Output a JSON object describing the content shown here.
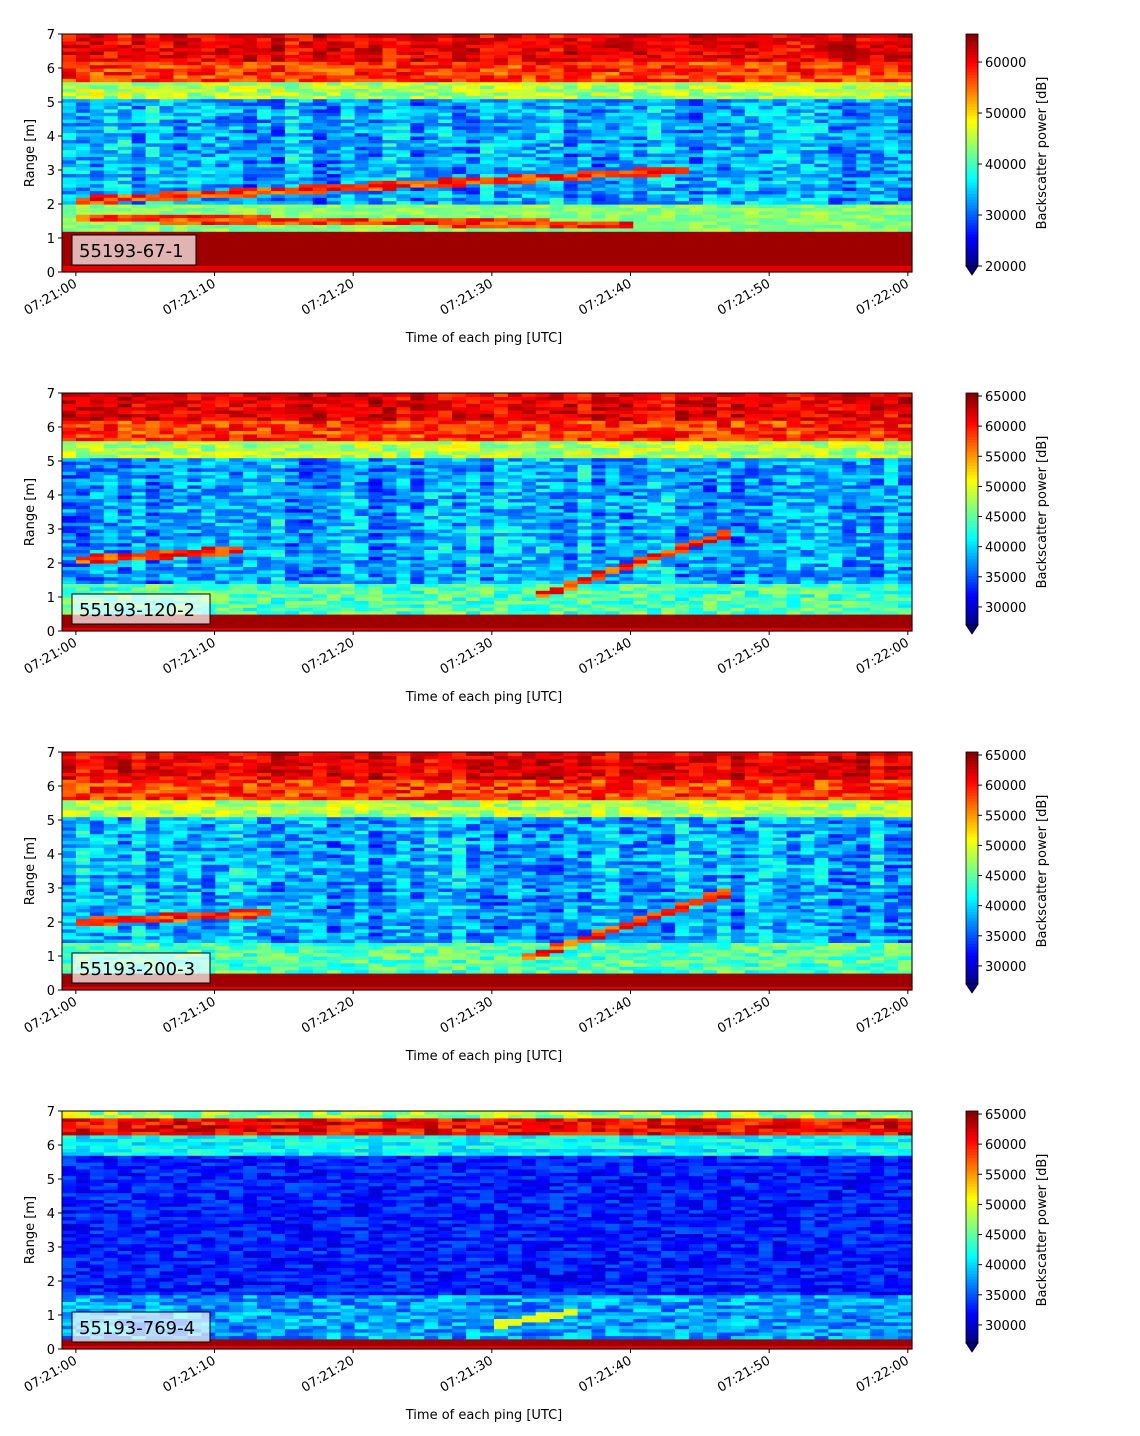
{
  "chart_data": [
    {
      "type": "heatmap",
      "label": "55193-67-1",
      "xlabel": "Time of each ping [UTC]",
      "ylabel": "Range [m]",
      "xticks": [
        "07:21:00",
        "07:21:10",
        "07:21:20",
        "07:21:30",
        "07:21:40",
        "07:21:50",
        "07:22:00"
      ],
      "xlim_seconds_after_07_21_00": [
        -1,
        60.3
      ],
      "ylim": [
        0,
        7
      ],
      "yticks": [
        0,
        1,
        2,
        3,
        4,
        5,
        6,
        7
      ],
      "colorbar": {
        "label": "Backscatter power [dB]",
        "range": [
          20000,
          65500
        ],
        "ticks": [
          20000,
          30000,
          40000,
          50000,
          60000
        ],
        "colormap": "jet",
        "extend": "min"
      },
      "features": {
        "near_field_high_band_m": [
          0.2,
          1.2
        ],
        "surface_high_band_m": [
          5.6,
          7.0
        ],
        "rising_target": {
          "t_start": 0,
          "t_end": 44,
          "range_start_m": 2.1,
          "range_end_m": 3.0
        },
        "second_target": {
          "t_start": 0,
          "t_end": 40,
          "range_start_m": 1.6,
          "range_end_m": 1.4
        }
      }
    },
    {
      "type": "heatmap",
      "label": "55193-120-2",
      "xlabel": "Time of each ping [UTC]",
      "ylabel": "Range [m]",
      "xticks": [
        "07:21:00",
        "07:21:10",
        "07:21:20",
        "07:21:30",
        "07:21:40",
        "07:21:50",
        "07:22:00"
      ],
      "xlim_seconds_after_07_21_00": [
        -1,
        60.3
      ],
      "ylim": [
        0,
        7
      ],
      "yticks": [
        0,
        1,
        2,
        3,
        4,
        5,
        6,
        7
      ],
      "colorbar": {
        "label": "Backscatter power [dB]",
        "range": [
          27000,
          65500
        ],
        "ticks": [
          30000,
          35000,
          40000,
          45000,
          50000,
          55000,
          60000,
          65000
        ],
        "colormap": "jet",
        "extend": "min"
      },
      "features": {
        "near_field_high_band_m": [
          0.1,
          0.5
        ],
        "surface_high_band_m": [
          5.6,
          7.0
        ],
        "rising_target": {
          "t_start": 33,
          "t_end": 47,
          "range_start_m": 1.0,
          "range_end_m": 2.9
        },
        "left_target": {
          "t_start": 0,
          "t_end": 12,
          "range_start_m": 2.1,
          "range_end_m": 2.4
        }
      }
    },
    {
      "type": "heatmap",
      "label": "55193-200-3",
      "xlabel": "Time of each ping [UTC]",
      "ylabel": "Range [m]",
      "xticks": [
        "07:21:00",
        "07:21:10",
        "07:21:20",
        "07:21:30",
        "07:21:40",
        "07:21:50",
        "07:22:00"
      ],
      "xlim_seconds_after_07_21_00": [
        -1,
        60.3
      ],
      "ylim": [
        0,
        7
      ],
      "yticks": [
        0,
        1,
        2,
        3,
        4,
        5,
        6,
        7
      ],
      "colorbar": {
        "label": "Backscatter power [dB]",
        "range": [
          27000,
          65500
        ],
        "ticks": [
          30000,
          35000,
          40000,
          45000,
          50000,
          55000,
          60000,
          65000
        ],
        "colormap": "jet",
        "extend": "min"
      },
      "features": {
        "near_field_high_band_m": [
          0.1,
          0.5
        ],
        "surface_high_band_m": [
          5.6,
          7.0
        ],
        "rising_target": {
          "t_start": 32,
          "t_end": 47,
          "range_start_m": 0.9,
          "range_end_m": 2.9
        },
        "left_target": {
          "t_start": 0,
          "t_end": 14,
          "range_start_m": 2.0,
          "range_end_m": 2.3
        }
      }
    },
    {
      "type": "heatmap",
      "label": "55193-769-4",
      "xlabel": "Time of each ping [UTC]",
      "ylabel": "Range [m]",
      "xticks": [
        "07:21:00",
        "07:21:10",
        "07:21:20",
        "07:21:30",
        "07:21:40",
        "07:21:50",
        "07:22:00"
      ],
      "xlim_seconds_after_07_21_00": [
        -1,
        60.3
      ],
      "ylim": [
        0,
        7
      ],
      "yticks": [
        0,
        1,
        2,
        3,
        4,
        5,
        6,
        7
      ],
      "colorbar": {
        "label": "Backscatter power [dB]",
        "range": [
          27000,
          65500
        ],
        "ticks": [
          30000,
          35000,
          40000,
          45000,
          50000,
          55000,
          60000,
          65000
        ],
        "colormap": "jet",
        "extend": "min"
      },
      "features": {
        "near_field_high_band_m": [
          0.1,
          0.35
        ],
        "surface_high_band_m": [
          6.3,
          6.8
        ],
        "rising_target": {
          "t_start": 30,
          "t_end": 36,
          "range_start_m": 0.7,
          "range_end_m": 1.1
        }
      }
    }
  ]
}
